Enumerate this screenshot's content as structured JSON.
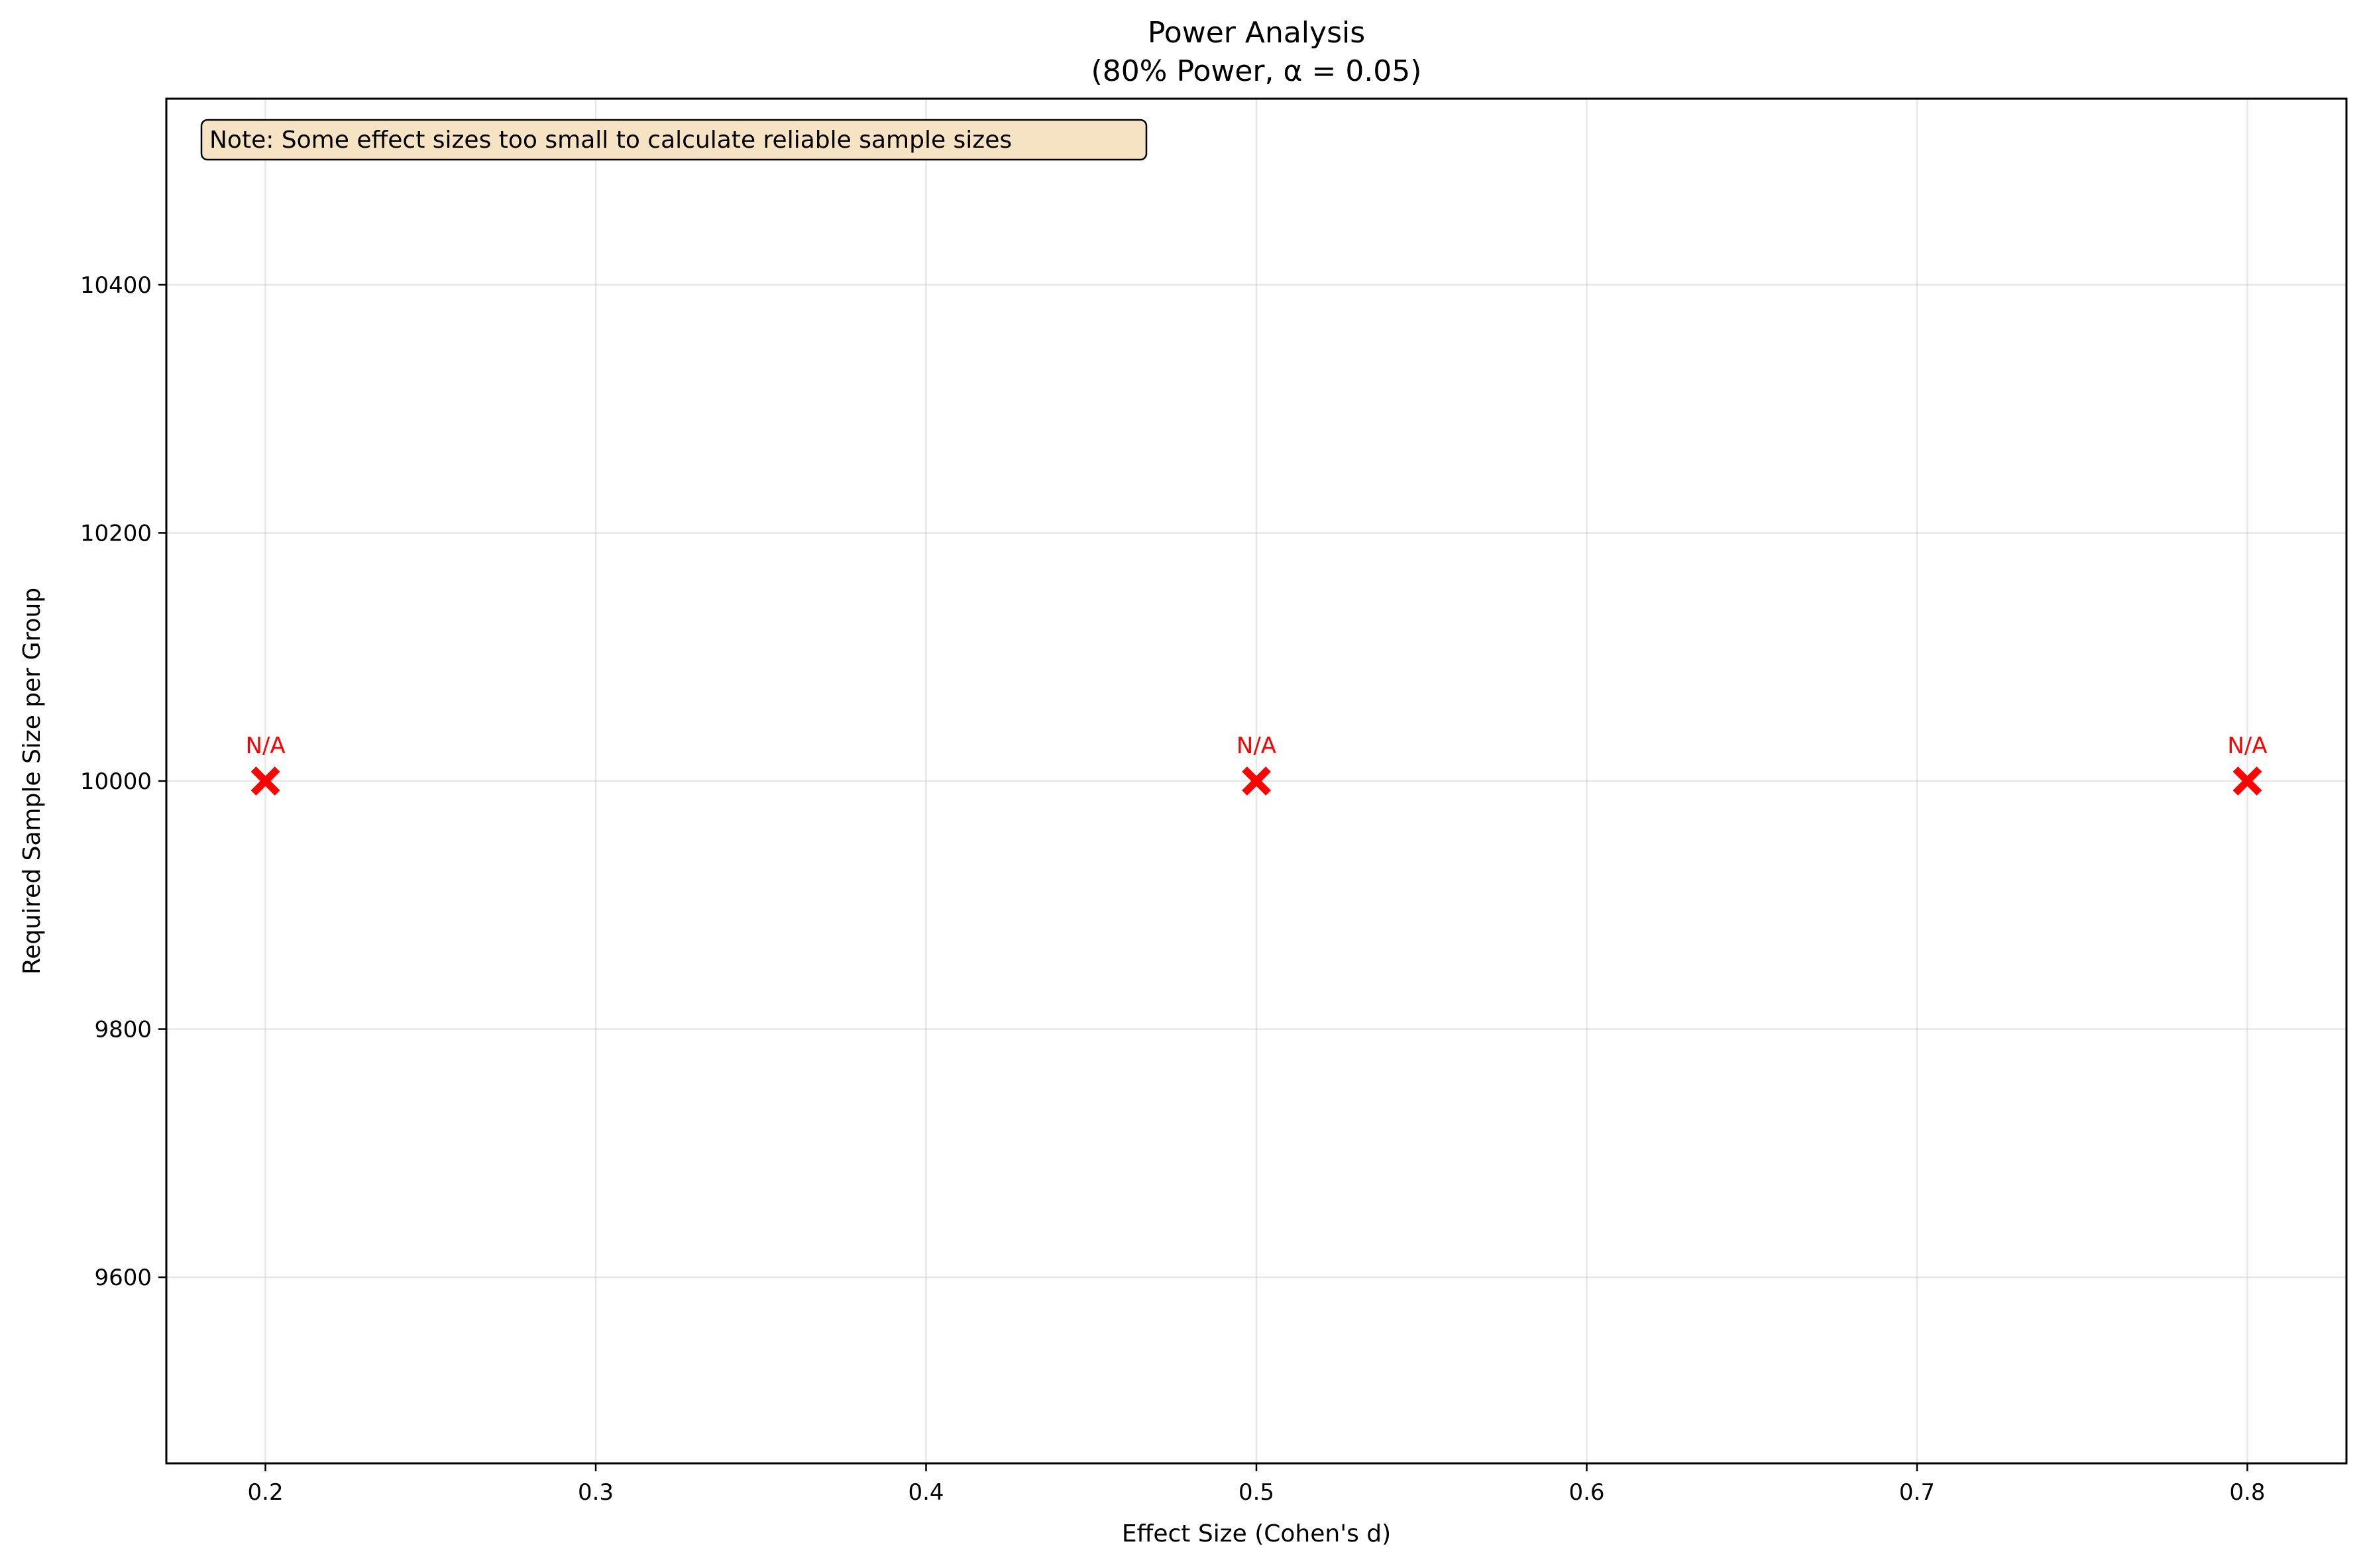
{
  "chart_data": {
    "type": "scatter",
    "title": "Power Analysis",
    "subtitle": "(80% Power, α = 0.05)",
    "xlabel": "Effect Size (Cohen's d)",
    "ylabel": "Required Sample Size per Group",
    "xlim": [
      0.17,
      0.83
    ],
    "ylim": [
      9450,
      10550
    ],
    "xticks": [
      0.2,
      0.3,
      0.4,
      0.5,
      0.6,
      0.7,
      0.8
    ],
    "xtick_labels": [
      "0.2",
      "0.3",
      "0.4",
      "0.5",
      "0.6",
      "0.7",
      "0.8"
    ],
    "yticks": [
      9600,
      9800,
      10000,
      10200,
      10400
    ],
    "ytick_labels": [
      "9600",
      "9800",
      "10000",
      "10200",
      "10400"
    ],
    "grid": true,
    "marker": "x",
    "marker_color": "#ff0000",
    "points": [
      {
        "x": 0.2,
        "y": 10000,
        "label": "N/A"
      },
      {
        "x": 0.5,
        "y": 10000,
        "label": "N/A"
      },
      {
        "x": 0.8,
        "y": 10000,
        "label": "N/A"
      }
    ],
    "annotation": {
      "text": "Note: Some effect sizes too small to calculate reliable sample sizes",
      "position": "top-left",
      "background": "#f6e3c4"
    }
  }
}
